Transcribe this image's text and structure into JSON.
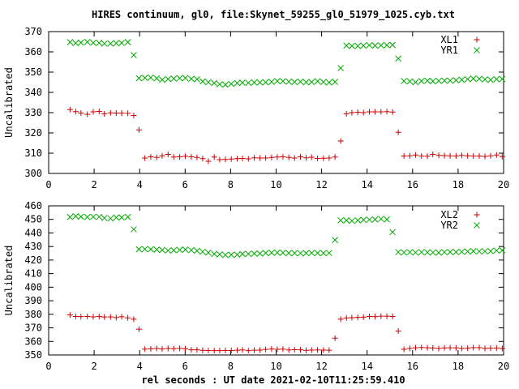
{
  "title": "HIRES continuum, gl0, file:Skynet_59255_gl0_51979_1025.cyb.txt",
  "xlabel": "rel seconds : UT date 2021-02-10T11:25:59.410",
  "chart_data": [
    {
      "type": "scatter",
      "ylabel": "Uncalibrated",
      "xlim": [
        0,
        20
      ],
      "ylim": [
        300,
        370
      ],
      "xticks": [
        0,
        2,
        4,
        6,
        8,
        10,
        12,
        14,
        16,
        18,
        20
      ],
      "yticks": [
        300,
        310,
        320,
        330,
        340,
        350,
        360,
        370
      ],
      "legend": "top-right",
      "series": [
        {
          "name": "XL1",
          "color": "#cc0000",
          "marker": "plus",
          "x": [
            0.94,
            1.19,
            1.42,
            1.7,
            1.96,
            2.22,
            2.45,
            2.72,
            2.97,
            3.21,
            3.48,
            3.74,
            3.97,
            4.23,
            4.49,
            4.75,
            4.99,
            5.25,
            5.5,
            5.76,
            6.01,
            6.27,
            6.52,
            6.77,
            7.02,
            7.28,
            7.52,
            7.77,
            8.03,
            8.29,
            8.52,
            8.78,
            9.04,
            9.29,
            9.54,
            9.8,
            10.05,
            10.3,
            10.56,
            10.81,
            11.07,
            11.32,
            11.56,
            11.82,
            12.08,
            12.33,
            12.59,
            12.84,
            13.09,
            13.33,
            13.59,
            13.84,
            14.1,
            14.35,
            14.61,
            14.87,
            15.12,
            15.37,
            15.62,
            15.88,
            16.13,
            16.39,
            16.65,
            16.89,
            17.15,
            17.4,
            17.65,
            17.91,
            18.16,
            18.42,
            18.67,
            18.93,
            19.18,
            19.43,
            19.69,
            19.94
          ],
          "y": [
            331.5,
            330.5,
            329.8,
            329.2,
            330.4,
            330.6,
            329.4,
            329.9,
            329.8,
            329.8,
            329.7,
            328.6,
            321.5,
            307.6,
            308.2,
            307.9,
            308.7,
            309.4,
            308.1,
            308.2,
            308.5,
            308.2,
            307.9,
            307.3,
            306.0,
            308.1,
            306.8,
            306.9,
            307.1,
            307.3,
            307.4,
            307.2,
            307.7,
            307.6,
            307.6,
            307.9,
            308.1,
            308.2,
            307.9,
            307.6,
            308.2,
            307.7,
            308.0,
            307.4,
            307.5,
            307.6,
            308.1,
            316.0,
            329.4,
            330.0,
            330.2,
            330.0,
            330.4,
            330.4,
            330.4,
            330.5,
            330.3,
            320.3,
            308.6,
            308.7,
            309.1,
            308.6,
            308.5,
            309.4,
            308.9,
            308.8,
            308.7,
            308.6,
            308.9,
            308.7,
            308.6,
            308.6,
            308.4,
            308.7,
            309.1,
            308.3
          ]
        },
        {
          "name": "YR1",
          "color": "#00aa00",
          "marker": "cross",
          "x": [
            0.94,
            1.19,
            1.42,
            1.7,
            1.96,
            2.22,
            2.45,
            2.72,
            2.97,
            3.21,
            3.48,
            3.74,
            3.97,
            4.23,
            4.49,
            4.75,
            4.99,
            5.25,
            5.5,
            5.76,
            6.01,
            6.27,
            6.52,
            6.77,
            7.02,
            7.28,
            7.52,
            7.77,
            8.03,
            8.29,
            8.52,
            8.78,
            9.04,
            9.29,
            9.54,
            9.8,
            10.05,
            10.3,
            10.56,
            10.81,
            11.07,
            11.32,
            11.56,
            11.82,
            12.08,
            12.33,
            12.59,
            12.84,
            13.09,
            13.33,
            13.59,
            13.84,
            14.1,
            14.35,
            14.61,
            14.87,
            15.12,
            15.37,
            15.62,
            15.88,
            16.13,
            16.39,
            16.65,
            16.89,
            17.15,
            17.4,
            17.65,
            17.91,
            18.16,
            18.42,
            18.67,
            18.93,
            19.18,
            19.43,
            19.69,
            19.94
          ],
          "y": [
            364.8,
            364.3,
            364.6,
            364.9,
            364.5,
            364.4,
            364.1,
            364.1,
            364.3,
            364.4,
            364.8,
            358.4,
            347.0,
            347.2,
            347.3,
            346.9,
            346.2,
            346.6,
            346.8,
            347.0,
            347.1,
            346.7,
            346.5,
            345.4,
            345.0,
            344.6,
            344.0,
            343.8,
            344.2,
            344.6,
            344.8,
            344.7,
            344.9,
            344.9,
            345.0,
            345.2,
            345.6,
            345.5,
            345.3,
            345.1,
            345.3,
            345.0,
            345.1,
            345.5,
            345.1,
            344.9,
            345.2,
            352.0,
            363.1,
            362.9,
            362.9,
            363.1,
            363.3,
            363.1,
            363.2,
            363.3,
            363.4,
            356.7,
            345.6,
            345.4,
            345.0,
            345.6,
            345.8,
            345.5,
            345.7,
            345.8,
            345.8,
            346.0,
            346.2,
            346.5,
            346.8,
            346.7,
            346.4,
            346.2,
            346.5,
            346.6
          ]
        }
      ]
    },
    {
      "type": "scatter",
      "ylabel": "Uncalibrated",
      "xlim": [
        0,
        20
      ],
      "ylim": [
        350,
        460
      ],
      "xticks": [
        0,
        2,
        4,
        6,
        8,
        10,
        12,
        14,
        16,
        18,
        20
      ],
      "yticks": [
        350,
        360,
        370,
        380,
        390,
        400,
        410,
        420,
        430,
        440,
        450,
        460
      ],
      "legend": "top-right",
      "series": [
        {
          "name": "XL2",
          "color": "#cc0000",
          "marker": "plus",
          "x": [
            0.94,
            1.19,
            1.42,
            1.7,
            1.96,
            2.22,
            2.45,
            2.72,
            2.97,
            3.21,
            3.48,
            3.74,
            3.97,
            4.23,
            4.49,
            4.75,
            4.99,
            5.25,
            5.5,
            5.76,
            6.01,
            6.27,
            6.52,
            6.77,
            7.02,
            7.28,
            7.52,
            7.77,
            8.03,
            8.29,
            8.52,
            8.78,
            9.04,
            9.29,
            9.54,
            9.8,
            10.05,
            10.3,
            10.56,
            10.81,
            11.07,
            11.32,
            11.56,
            11.82,
            12.08,
            12.33,
            12.59,
            12.84,
            13.09,
            13.33,
            13.59,
            13.84,
            14.1,
            14.35,
            14.61,
            14.87,
            15.12,
            15.37,
            15.62,
            15.88,
            16.13,
            16.39,
            16.65,
            16.89,
            17.15,
            17.4,
            17.65,
            17.91,
            18.16,
            18.42,
            18.67,
            18.93,
            19.18,
            19.43,
            19.69,
            19.94
          ],
          "y": [
            379.5,
            378.4,
            378.3,
            378.4,
            378.1,
            378.4,
            378.0,
            378.1,
            377.6,
            378.2,
            377.4,
            376.4,
            369.0,
            354.3,
            354.5,
            354.8,
            354.4,
            354.8,
            354.6,
            354.9,
            354.6,
            353.8,
            353.8,
            353.4,
            353.3,
            353.2,
            353.2,
            353.3,
            353.3,
            353.5,
            353.7,
            353.2,
            353.5,
            353.6,
            354.1,
            354.4,
            354.2,
            354.3,
            353.7,
            353.9,
            353.8,
            353.4,
            353.6,
            353.7,
            353.6,
            353.5,
            362.4,
            376.4,
            377.3,
            377.5,
            377.7,
            377.9,
            378.4,
            378.3,
            378.6,
            378.6,
            378.4,
            367.7,
            354.2,
            354.8,
            355.3,
            355.5,
            355.3,
            355.1,
            354.8,
            355.2,
            355.3,
            355.2,
            354.8,
            355.0,
            355.4,
            355.4,
            354.8,
            355.0,
            355.1,
            354.8
          ]
        },
        {
          "name": "YR2",
          "color": "#00aa00",
          "marker": "cross",
          "x": [
            0.94,
            1.19,
            1.42,
            1.7,
            1.96,
            2.22,
            2.45,
            2.72,
            2.97,
            3.21,
            3.48,
            3.74,
            3.97,
            4.23,
            4.49,
            4.75,
            4.99,
            5.25,
            5.5,
            5.76,
            6.01,
            6.27,
            6.52,
            6.77,
            7.02,
            7.28,
            7.52,
            7.77,
            8.03,
            8.29,
            8.52,
            8.78,
            9.04,
            9.29,
            9.54,
            9.8,
            10.05,
            10.3,
            10.56,
            10.81,
            11.07,
            11.32,
            11.56,
            11.82,
            12.08,
            12.33,
            12.59,
            12.84,
            13.09,
            13.33,
            13.59,
            13.84,
            14.1,
            14.35,
            14.61,
            14.87,
            15.12,
            15.37,
            15.62,
            15.88,
            16.13,
            16.39,
            16.65,
            16.89,
            17.15,
            17.4,
            17.65,
            17.91,
            18.16,
            18.42,
            18.67,
            18.93,
            19.18,
            19.43,
            19.69,
            19.94
          ],
          "y": [
            451.8,
            452.4,
            452.0,
            451.7,
            451.9,
            451.9,
            451.0,
            450.7,
            451.4,
            451.4,
            451.8,
            442.7,
            428.0,
            428.1,
            428.0,
            427.7,
            427.4,
            427.0,
            427.2,
            427.5,
            427.8,
            427.3,
            426.8,
            426.1,
            425.5,
            424.5,
            424.2,
            423.8,
            423.9,
            424.0,
            424.5,
            424.6,
            424.8,
            424.8,
            425.2,
            425.4,
            425.5,
            425.4,
            425.2,
            425.1,
            425.0,
            425.1,
            425.3,
            425.2,
            425.1,
            425.3,
            434.8,
            449.3,
            449.3,
            448.9,
            449.3,
            449.6,
            449.8,
            449.9,
            450.4,
            450.0,
            440.6,
            425.8,
            425.6,
            425.8,
            425.6,
            425.8,
            425.7,
            425.6,
            425.5,
            425.8,
            425.9,
            425.9,
            426.1,
            426.3,
            426.6,
            426.4,
            426.4,
            426.6,
            427.0,
            427.2
          ]
        }
      ]
    }
  ]
}
